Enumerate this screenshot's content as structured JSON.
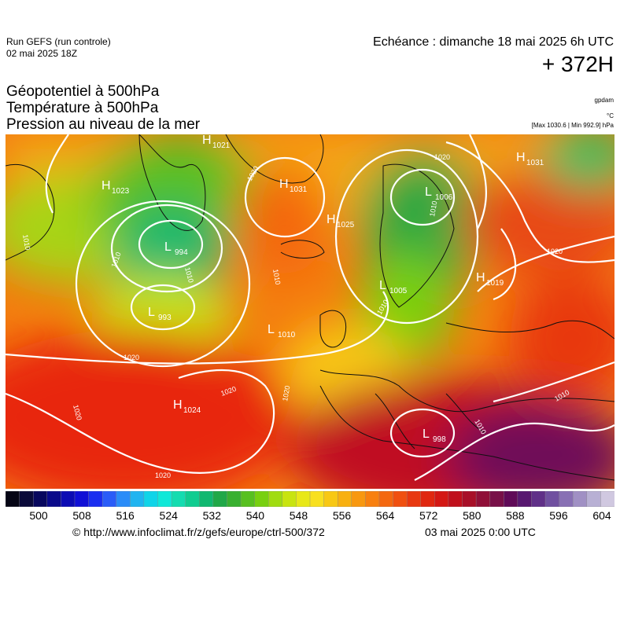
{
  "header": {
    "run_line1": "Run GEFS (run controle)",
    "run_line2": "02 mai 2025 18Z",
    "echeance": "Echéance : dimanche 18 mai 2025 6h UTC",
    "hour": "+ 372H"
  },
  "titles": {
    "line1": "Géopotentiel à 500hPa",
    "line2": "Température à 500hPa",
    "line3": "Pression au niveau de la mer"
  },
  "units": {
    "geopotential": "gpdam",
    "temperature": "°C",
    "maxmin": "[Max 1030.6 | Min 992.9] hPa"
  },
  "pressure_centers": [
    {
      "type": "H",
      "value": "1021"
    },
    {
      "type": "H",
      "value": "1023"
    },
    {
      "type": "H",
      "value": "1031"
    },
    {
      "type": "L",
      "value": "1006"
    },
    {
      "type": "H",
      "value": "1031"
    },
    {
      "type": "L",
      "value": "994"
    },
    {
      "type": "H",
      "value": "1025"
    },
    {
      "type": "H",
      "value": "1019"
    },
    {
      "type": "L",
      "value": "1005"
    },
    {
      "type": "L",
      "value": "993"
    },
    {
      "type": "L",
      "value": "1010"
    },
    {
      "type": "H",
      "value": "1024"
    },
    {
      "type": "L",
      "value": "998"
    }
  ],
  "isobar_labels": [
    "1010",
    "1020",
    "1020",
    "1010",
    "1020",
    "1010",
    "1020",
    "1010",
    "1020",
    "1020",
    "1010",
    "1010",
    "1020",
    "1010",
    "1020",
    "1010"
  ],
  "colorbar": {
    "colors": [
      "#050515",
      "#0a0a3a",
      "#08085e",
      "#0a0a8a",
      "#0c0cb4",
      "#1010d6",
      "#1a2ef0",
      "#2a5cf8",
      "#2a8cf8",
      "#20b4f0",
      "#10d4e8",
      "#10e8d8",
      "#14dcb0",
      "#10cc90",
      "#10b870",
      "#20a848",
      "#38b030",
      "#58c020",
      "#78d010",
      "#a0dc10",
      "#c8e410",
      "#e8e818",
      "#f8e020",
      "#f8c814",
      "#f8b010",
      "#f89810",
      "#f88010",
      "#f46810",
      "#f05010",
      "#e83810",
      "#e02810",
      "#d41814",
      "#c0101c",
      "#a81028",
      "#901038",
      "#781048",
      "#600a58",
      "#581870",
      "#603088",
      "#7050a0",
      "#8870b4",
      "#a090c4",
      "#b8b0d4",
      "#d0c8e0"
    ],
    "ticks": [
      "500",
      "508",
      "516",
      "524",
      "532",
      "540",
      "548",
      "556",
      "564",
      "572",
      "580",
      "588",
      "596",
      "604"
    ]
  },
  "footer": {
    "source": "© http://www.infoclimat.fr/z/gefs/europe/ctrl-500/372",
    "date": "03 mai 2025  0:00 UTC"
  }
}
